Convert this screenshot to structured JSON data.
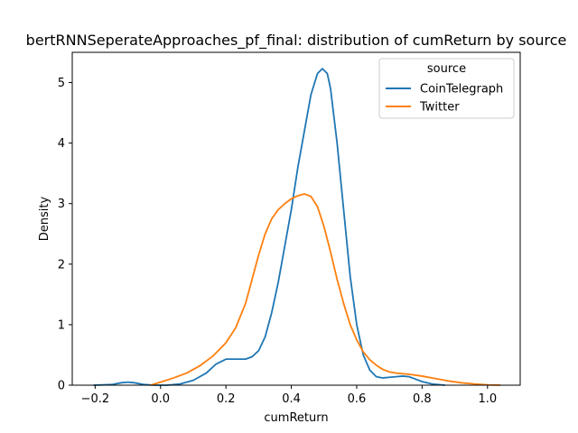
{
  "chart_data": {
    "type": "line",
    "title": "bertRNNSeperateApproaches_pf_final: distribution of cumReturn by source",
    "xlabel": "cumReturn",
    "ylabel": "Density",
    "xlim": [
      -0.27,
      1.1
    ],
    "ylim": [
      0,
      5.5
    ],
    "xticks": [
      -0.2,
      0.0,
      0.2,
      0.4,
      0.6,
      0.8,
      1.0
    ],
    "xtick_labels": [
      "−0.2",
      "0.0",
      "0.2",
      "0.4",
      "0.6",
      "0.8",
      "1.0"
    ],
    "yticks": [
      0,
      1,
      2,
      3,
      4,
      5
    ],
    "ytick_labels": [
      "0",
      "1",
      "2",
      "3",
      "4",
      "5"
    ],
    "grid": false,
    "legend": {
      "title": "source",
      "placement": "top-right"
    },
    "series": [
      {
        "name": "CoinTelegraph",
        "color": "#1f77b4",
        "points": [
          [
            -0.205,
            0.0
          ],
          [
            -0.15,
            0.01
          ],
          [
            -0.12,
            0.04
          ],
          [
            -0.1,
            0.05
          ],
          [
            -0.08,
            0.04
          ],
          [
            -0.05,
            0.01
          ],
          [
            -0.02,
            0.0
          ],
          [
            0.02,
            0.0
          ],
          [
            0.06,
            0.02
          ],
          [
            0.1,
            0.08
          ],
          [
            0.14,
            0.2
          ],
          [
            0.17,
            0.35
          ],
          [
            0.2,
            0.43
          ],
          [
            0.23,
            0.43
          ],
          [
            0.26,
            0.43
          ],
          [
            0.28,
            0.47
          ],
          [
            0.3,
            0.57
          ],
          [
            0.32,
            0.8
          ],
          [
            0.34,
            1.2
          ],
          [
            0.36,
            1.7
          ],
          [
            0.38,
            2.3
          ],
          [
            0.4,
            2.9
          ],
          [
            0.42,
            3.6
          ],
          [
            0.44,
            4.2
          ],
          [
            0.46,
            4.8
          ],
          [
            0.48,
            5.15
          ],
          [
            0.495,
            5.23
          ],
          [
            0.51,
            5.15
          ],
          [
            0.52,
            4.9
          ],
          [
            0.54,
            4.0
          ],
          [
            0.56,
            2.9
          ],
          [
            0.58,
            1.8
          ],
          [
            0.6,
            1.0
          ],
          [
            0.62,
            0.5
          ],
          [
            0.64,
            0.25
          ],
          [
            0.66,
            0.14
          ],
          [
            0.68,
            0.12
          ],
          [
            0.7,
            0.13
          ],
          [
            0.72,
            0.14
          ],
          [
            0.74,
            0.15
          ],
          [
            0.76,
            0.14
          ],
          [
            0.78,
            0.1
          ],
          [
            0.8,
            0.06
          ],
          [
            0.83,
            0.02
          ],
          [
            0.87,
            0.0
          ]
        ]
      },
      {
        "name": "Twitter",
        "color": "#ff7f0e",
        "points": [
          [
            -0.03,
            0.0
          ],
          [
            0.0,
            0.05
          ],
          [
            0.04,
            0.12
          ],
          [
            0.08,
            0.2
          ],
          [
            0.12,
            0.32
          ],
          [
            0.16,
            0.48
          ],
          [
            0.2,
            0.7
          ],
          [
            0.23,
            0.95
          ],
          [
            0.26,
            1.35
          ],
          [
            0.28,
            1.75
          ],
          [
            0.3,
            2.15
          ],
          [
            0.32,
            2.5
          ],
          [
            0.34,
            2.75
          ],
          [
            0.36,
            2.9
          ],
          [
            0.38,
            3.0
          ],
          [
            0.4,
            3.08
          ],
          [
            0.42,
            3.13
          ],
          [
            0.44,
            3.16
          ],
          [
            0.46,
            3.12
          ],
          [
            0.48,
            2.95
          ],
          [
            0.5,
            2.62
          ],
          [
            0.52,
            2.2
          ],
          [
            0.54,
            1.75
          ],
          [
            0.56,
            1.35
          ],
          [
            0.58,
            1.0
          ],
          [
            0.6,
            0.75
          ],
          [
            0.62,
            0.55
          ],
          [
            0.64,
            0.42
          ],
          [
            0.66,
            0.33
          ],
          [
            0.68,
            0.26
          ],
          [
            0.7,
            0.22
          ],
          [
            0.72,
            0.2
          ],
          [
            0.74,
            0.19
          ],
          [
            0.76,
            0.18
          ],
          [
            0.8,
            0.15
          ],
          [
            0.84,
            0.11
          ],
          [
            0.88,
            0.07
          ],
          [
            0.92,
            0.04
          ],
          [
            0.96,
            0.02
          ],
          [
            1.0,
            0.005
          ],
          [
            1.04,
            0.0
          ]
        ]
      }
    ]
  }
}
